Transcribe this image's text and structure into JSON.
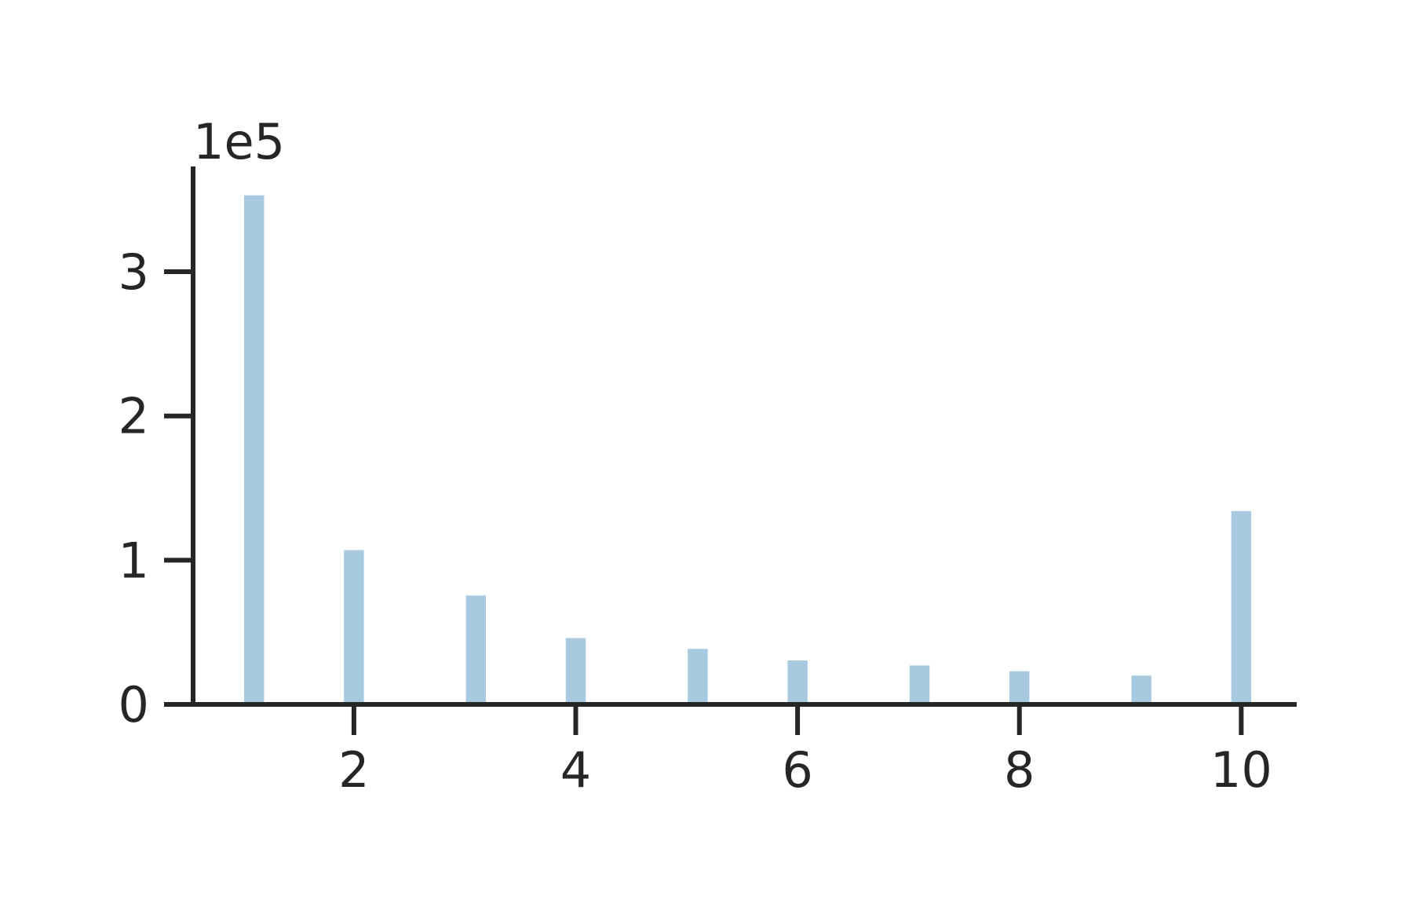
{
  "chart_data": {
    "type": "bar",
    "title": "",
    "xlabel": "",
    "ylabel": "",
    "y_offset_label": "1e5",
    "x": [
      1.1,
      2.0,
      3.1,
      4.0,
      5.1,
      6.0,
      7.1,
      8.0,
      9.1,
      10.0
    ],
    "values": [
      353000,
      107000,
      75500,
      46000,
      38500,
      30500,
      27000,
      23000,
      20000,
      134000
    ],
    "xlim": [
      0.55,
      10.5
    ],
    "ylim": [
      0,
      373000
    ],
    "x_ticks": [
      2,
      4,
      6,
      8,
      10
    ],
    "x_tick_labels": [
      "2",
      "4",
      "6",
      "8",
      "10"
    ],
    "y_ticks": [
      0,
      100000,
      200000,
      300000
    ],
    "y_tick_labels": [
      "0",
      "1",
      "2",
      "3"
    ],
    "bar_width": 0.18,
    "grid": false,
    "legend": "none",
    "colors": {
      "bar": "#a8cae1",
      "axis": "#262626",
      "text": "#262626",
      "background": "#ffffff"
    }
  }
}
